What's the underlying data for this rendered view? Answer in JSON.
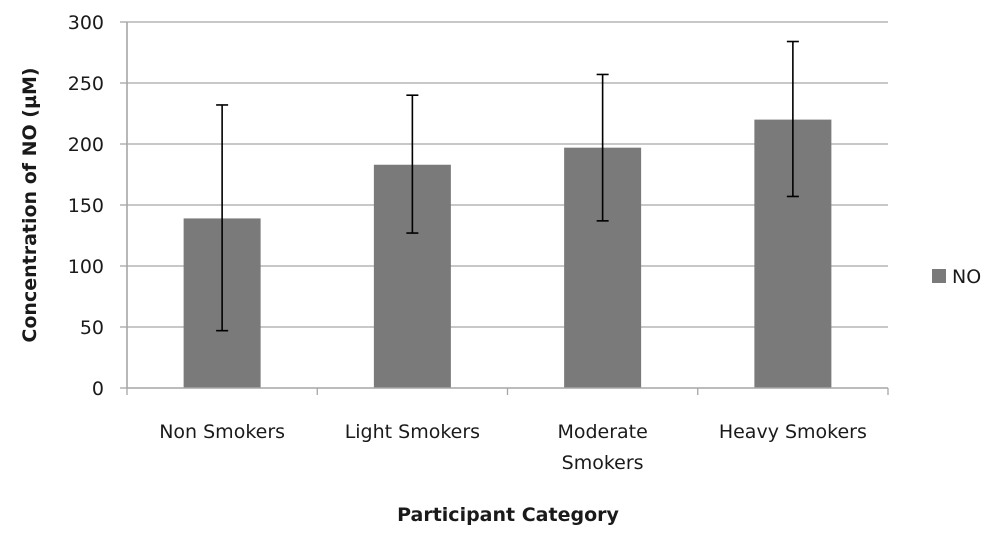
{
  "chart_data": {
    "type": "bar",
    "title": "",
    "xlabel": "Participant Category",
    "ylabel": "Concentration of NO (µM)",
    "categories": [
      [
        "Non Smokers"
      ],
      [
        "Light Smokers"
      ],
      [
        "Moderate",
        "Smokers"
      ],
      [
        "Heavy Smokers"
      ]
    ],
    "series": [
      {
        "name": "NO",
        "color": "#7a7a7a",
        "values": [
          139,
          183,
          197,
          220
        ],
        "error_low": [
          47,
          127,
          137,
          157
        ],
        "error_high": [
          232,
          240,
          257,
          284
        ]
      }
    ],
    "ylim": [
      0,
      300
    ],
    "yticks": [
      0,
      50,
      100,
      150,
      200,
      250,
      300
    ],
    "grid": true,
    "legend_position": "right",
    "gridline_color": "#a6a6a6",
    "errorbar_color": "#000000"
  }
}
